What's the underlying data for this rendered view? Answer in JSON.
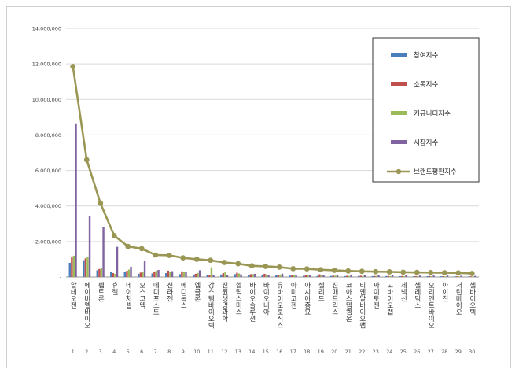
{
  "chart_data": {
    "type": "bar",
    "title": "",
    "xlabel": "",
    "ylabel": "",
    "ylim": [
      0,
      14000000
    ],
    "yticks": [
      "14,000,000",
      "12,000,000",
      "10,000,000",
      "8,000,000",
      "6,000,000",
      "4,000,000",
      "2,000,000",
      "-"
    ],
    "grid": true,
    "legend_position": "top-right",
    "categories": [
      "알테오젠",
      "에이비엘바이오",
      "펩트론",
      "휴젤",
      "네이처셀",
      "오스코텍",
      "메디포스트",
      "신라젠",
      "메디톡스",
      "엡클론",
      "강스템바이오텍",
      "진원생명과학",
      "헬릭스미스",
      "바이오솔루션",
      "바이오니아",
      "유바이오로직스",
      "아미코젠",
      "아시아종묘",
      "셀리드",
      "진매트릭스",
      "코아스템켐온",
      "티엔알바이오팹",
      "싸이토젠",
      "고바이오랩",
      "제넥신",
      "셀레믹스",
      "오리엔트바이오",
      "아이진",
      "서린바이오",
      "셀바이오텍"
    ],
    "ranks": [
      "1",
      "2",
      "3",
      "4",
      "5",
      "6",
      "7",
      "8",
      "9",
      "10",
      "11",
      "12",
      "13",
      "14",
      "15",
      "16",
      "17",
      "18",
      "19",
      "20",
      "21",
      "22",
      "23",
      "24",
      "25",
      "26",
      "27",
      "28",
      "29",
      "30"
    ],
    "series": [
      {
        "name": "참여지수",
        "kind": "bar",
        "color": "#4a7ebb",
        "values": [
          800000,
          950000,
          380000,
          280000,
          300000,
          180000,
          200000,
          220000,
          160000,
          140000,
          110000,
          140000,
          160000,
          100000,
          120000,
          100000,
          80000,
          70000,
          60000,
          60000,
          50000,
          55000,
          50000,
          50000,
          45000,
          40000,
          45000,
          40000,
          35000,
          30000
        ]
      },
      {
        "name": "소통지수",
        "kind": "bar",
        "color": "#c0504d",
        "values": [
          1100000,
          1050000,
          450000,
          220000,
          350000,
          250000,
          280000,
          360000,
          320000,
          180000,
          120000,
          220000,
          240000,
          160000,
          180000,
          130000,
          100000,
          110000,
          150000,
          80000,
          70000,
          70000,
          60000,
          60000,
          55000,
          50000,
          55000,
          45000,
          40000,
          35000
        ]
      },
      {
        "name": "커뮤니티지수",
        "kind": "bar",
        "color": "#9bbb59",
        "values": [
          1200000,
          1150000,
          520000,
          180000,
          420000,
          280000,
          360000,
          300000,
          280000,
          230000,
          550000,
          260000,
          200000,
          170000,
          150000,
          140000,
          110000,
          120000,
          90000,
          80000,
          60000,
          65000,
          55000,
          50000,
          45000,
          45000,
          40000,
          40000,
          35000,
          30000
        ]
      },
      {
        "name": "시장지수",
        "kind": "bar",
        "color": "#8064a2",
        "values": [
          8650000,
          3450000,
          2800000,
          1700000,
          580000,
          900000,
          400000,
          330000,
          300000,
          380000,
          100000,
          120000,
          150000,
          180000,
          100000,
          190000,
          90000,
          120000,
          100000,
          100000,
          110000,
          90000,
          90000,
          110000,
          90000,
          80000,
          80000,
          85000,
          70000,
          60000
        ]
      },
      {
        "name": "브랜드평판지수",
        "kind": "line",
        "color": "#9a9654",
        "values": [
          11850000,
          6600000,
          4150000,
          2330000,
          1720000,
          1600000,
          1240000,
          1220000,
          1080000,
          1000000,
          940000,
          820000,
          750000,
          630000,
          600000,
          560000,
          470000,
          460000,
          410000,
          380000,
          340000,
          320000,
          300000,
          290000,
          270000,
          260000,
          250000,
          240000,
          230000,
          200000
        ]
      }
    ]
  }
}
